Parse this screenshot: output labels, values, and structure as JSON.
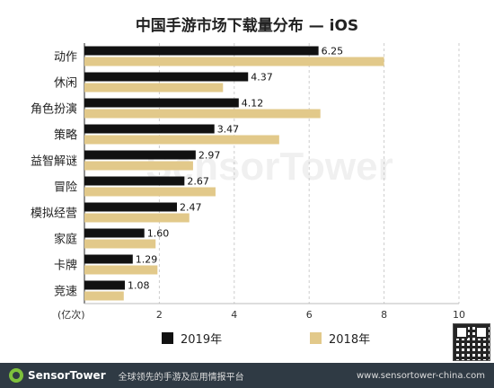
{
  "chart_data": {
    "type": "bar",
    "orientation": "horizontal",
    "title": "中国手游市场下载量分布 — iOS",
    "unit_label": "(亿次)",
    "categories": [
      "动作",
      "休闲",
      "角色扮演",
      "策略",
      "益智解谜",
      "冒险",
      "模拟经营",
      "家庭",
      "卡牌",
      "竞速"
    ],
    "series": [
      {
        "name": "2019年",
        "color": "#111111",
        "values": [
          6.25,
          4.37,
          4.12,
          3.47,
          2.97,
          2.67,
          2.47,
          1.6,
          1.29,
          1.08
        ],
        "labels": [
          "6.25",
          "4.37",
          "4.12",
          "3.47",
          "2.97",
          "2.67",
          "2.47",
          "1.60",
          "1.29",
          "1.08"
        ]
      },
      {
        "name": "2018年",
        "color": "#e2c98a",
        "values": [
          8.0,
          3.7,
          6.3,
          5.2,
          2.9,
          3.5,
          2.8,
          1.9,
          1.95,
          1.05
        ]
      }
    ],
    "xlim": [
      0,
      10
    ],
    "x_ticks": [
      2,
      4,
      6,
      8,
      10
    ],
    "grid": "vertical",
    "legend": "bottom"
  },
  "watermark": "SensorTower",
  "footer": {
    "brand": "SensorTower",
    "slogan": "全球领先的手游及应用情报平台",
    "site": "www.sensortower-china.com"
  }
}
